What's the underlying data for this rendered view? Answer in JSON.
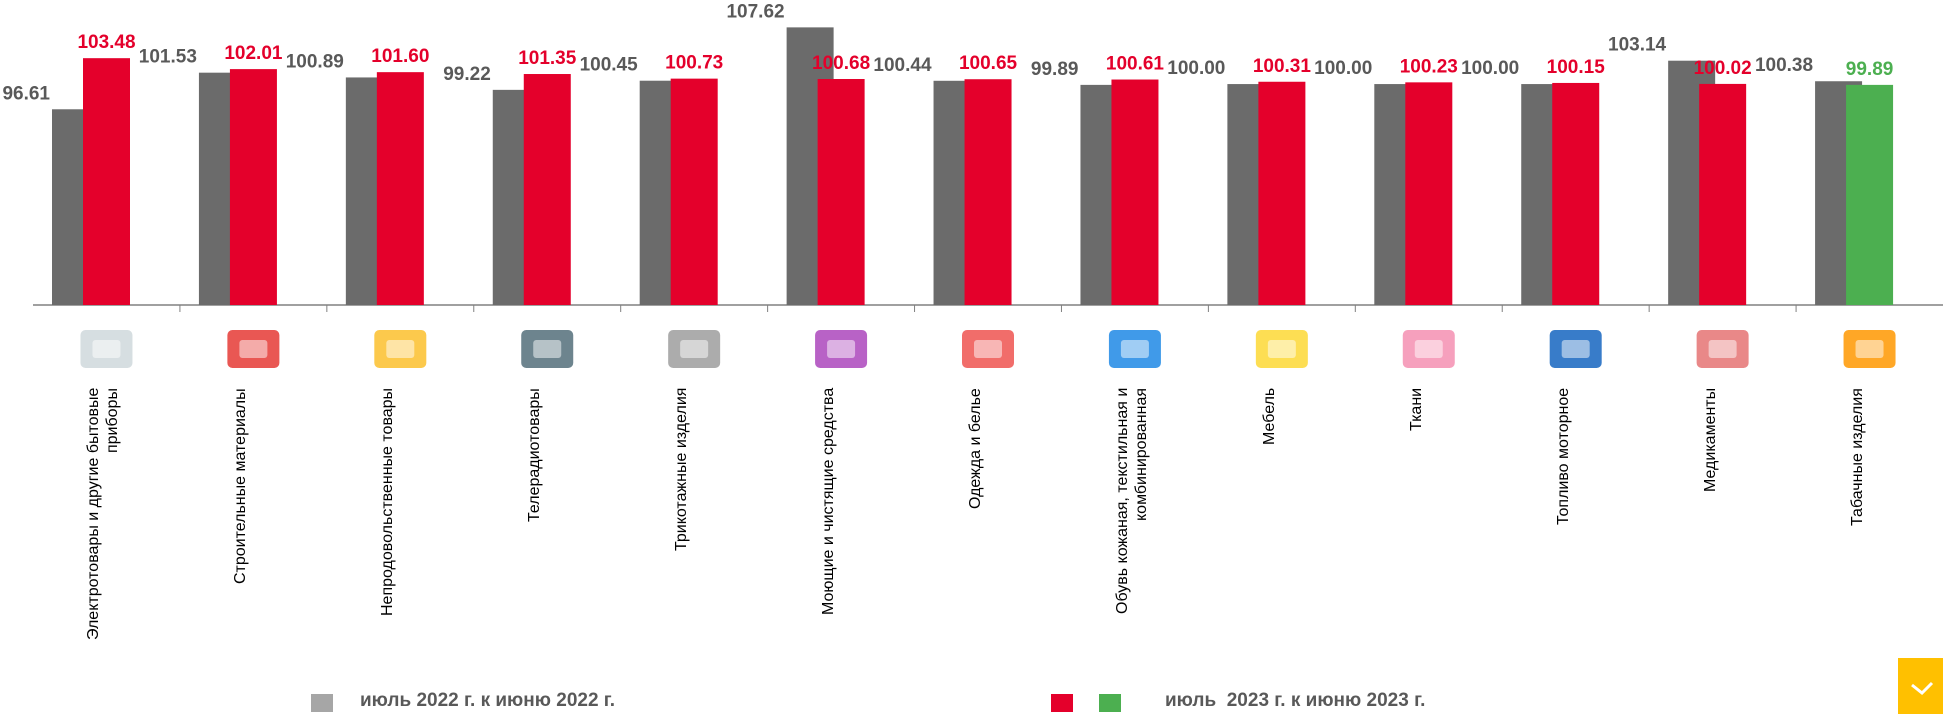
{
  "chart_data": {
    "type": "bar",
    "categories": [
      "Электротовары и другие бытовые приборы",
      "Строительные материалы",
      "Непродовольственные товары",
      "Телерадиотовары",
      "Трикотажные изделия",
      "Моющие и чистящие средства",
      "Одежда и белье",
      "Обувь кожаная, текстильная и комбинированная",
      "Мебель",
      "Ткани",
      "Топливо моторное",
      "Медикаменты",
      "Табачные изделия"
    ],
    "series": [
      {
        "name": "июль 2022 г. к июню 2022 г.",
        "color": "#6b6b6b",
        "label_color": "#595959",
        "values": [
          96.61,
          101.53,
          100.89,
          99.22,
          100.45,
          107.62,
          100.44,
          99.89,
          100,
          100,
          100,
          103.14,
          100.38
        ],
        "value_labels": [
          "96.61",
          "101.53",
          "100.89",
          "99.22",
          "100.45",
          "107.62",
          "100.44",
          "99.89",
          "100.00",
          "100.00",
          "100.00",
          "103.14",
          "100.38"
        ]
      },
      {
        "name": "июль  2023 г. к июню 2023 г.",
        "colors": [
          "#e4002b",
          "#e4002b",
          "#e4002b",
          "#e4002b",
          "#e4002b",
          "#e4002b",
          "#e4002b",
          "#e4002b",
          "#e4002b",
          "#e4002b",
          "#e4002b",
          "#e4002b",
          "#4caf50"
        ],
        "legend_colors": [
          "#e4002b",
          "#4caf50"
        ],
        "values": [
          103.48,
          102.01,
          101.6,
          101.35,
          100.73,
          100.68,
          100.65,
          100.61,
          100.31,
          100.23,
          100.15,
          100.02,
          99.89
        ],
        "value_labels": [
          "103.48",
          "102.01",
          "101.60",
          "101.35",
          "100.73",
          "100.68",
          "100.65",
          "100.61",
          "100.31",
          "100.23",
          "100.15",
          "100.02",
          "99.89"
        ]
      }
    ],
    "ylim": [
      70.3,
      111.3
    ]
  }
}
